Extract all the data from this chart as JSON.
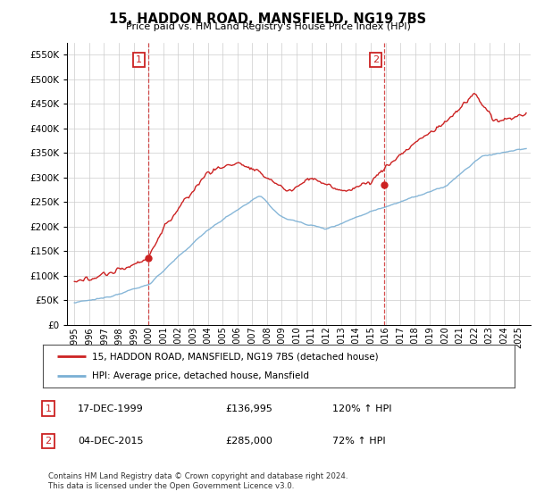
{
  "title": "15, HADDON ROAD, MANSFIELD, NG19 7BS",
  "subtitle": "Price paid vs. HM Land Registry's House Price Index (HPI)",
  "hpi_color": "#7aafd4",
  "price_color": "#cc2222",
  "annotation_color": "#cc2222",
  "dashed_line_color": "#cc2222",
  "background_color": "#ffffff",
  "grid_color": "#cccccc",
  "legend_label_price": "15, HADDON ROAD, MANSFIELD, NG19 7BS (detached house)",
  "legend_label_hpi": "HPI: Average price, detached house, Mansfield",
  "purchase1_date": 1999.96,
  "purchase1_price": 136995,
  "purchase1_label": "1",
  "purchase2_date": 2015.92,
  "purchase2_price": 285000,
  "purchase2_label": "2",
  "table_rows": [
    [
      "1",
      "17-DEC-1999",
      "£136,995",
      "120% ↑ HPI"
    ],
    [
      "2",
      "04-DEC-2015",
      "£285,000",
      "72% ↑ HPI"
    ]
  ],
  "footer_text": "Contains HM Land Registry data © Crown copyright and database right 2024.\nThis data is licensed under the Open Government Licence v3.0.",
  "ylim": [
    0,
    575000
  ],
  "yticks": [
    0,
    50000,
    100000,
    150000,
    200000,
    250000,
    300000,
    350000,
    400000,
    450000,
    500000,
    550000
  ],
  "xlim_start": 1994.5,
  "xlim_end": 2025.8
}
